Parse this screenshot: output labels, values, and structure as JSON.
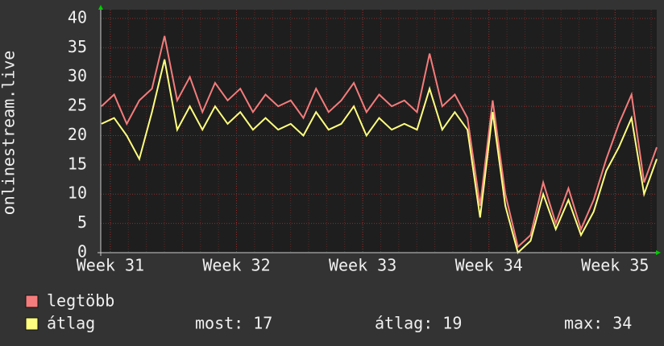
{
  "chart_data": {
    "type": "line",
    "ylabel": "onlinestream.live",
    "x": [
      30.93,
      31.03,
      31.13,
      31.23,
      31.33,
      31.43,
      31.53,
      31.63,
      31.73,
      31.83,
      31.93,
      32.03,
      32.13,
      32.23,
      32.33,
      32.43,
      32.53,
      32.63,
      32.73,
      32.83,
      32.93,
      33.03,
      33.13,
      33.23,
      33.33,
      33.43,
      33.53,
      33.63,
      33.73,
      33.83,
      33.93,
      34.03,
      34.13,
      34.23,
      34.33,
      34.43,
      34.53,
      34.63,
      34.73,
      34.83,
      34.93,
      35.03,
      35.13,
      35.23,
      35.33
    ],
    "series": [
      {
        "name": "legtöbb",
        "color": "#f47c7c",
        "values": [
          25,
          27,
          22,
          26,
          28,
          37,
          26,
          30,
          24,
          29,
          26,
          28,
          24,
          27,
          25,
          26,
          23,
          28,
          24,
          26,
          29,
          24,
          27,
          25,
          26,
          24,
          34,
          25,
          27,
          23,
          8,
          26,
          10,
          1,
          3,
          12,
          5,
          11,
          4,
          9,
          16,
          22,
          27,
          12,
          18
        ]
      },
      {
        "name": "átlag",
        "color": "#ffff80",
        "values": [
          22,
          23,
          20,
          16,
          24,
          33,
          21,
          25,
          21,
          25,
          22,
          24,
          21,
          23,
          21,
          22,
          20,
          24,
          21,
          22,
          25,
          20,
          23,
          21,
          22,
          21,
          28,
          21,
          24,
          21,
          6,
          24,
          8,
          0,
          2,
          10,
          4,
          9,
          3,
          7,
          14,
          18,
          23,
          10,
          16
        ]
      }
    ],
    "xlim": [
      30.924,
      35.33
    ],
    "xticks": [
      {
        "value": 31,
        "label": "Week 31"
      },
      {
        "value": 32,
        "label": "Week 32"
      },
      {
        "value": 33,
        "label": "Week 33"
      },
      {
        "value": 34,
        "label": "Week 34"
      },
      {
        "value": 35,
        "label": "Week 35"
      }
    ],
    "ylim": [
      0,
      41.5
    ],
    "yticks": [
      0,
      5,
      10,
      15,
      20,
      25,
      30,
      35,
      40
    ],
    "grid": true,
    "stats": [
      "most: 17",
      "átlag: 19",
      "max: 34"
    ]
  }
}
